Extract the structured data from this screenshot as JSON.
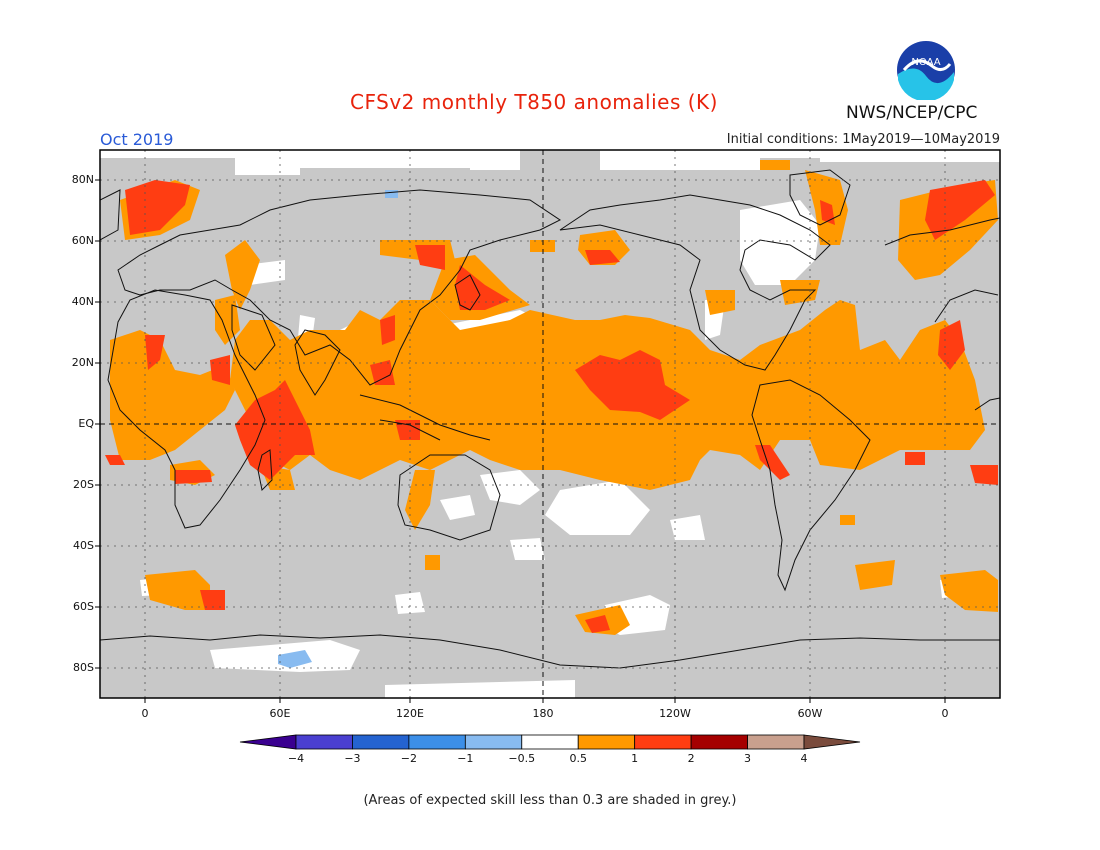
{
  "header": {
    "title": "CFSv2 monthly T850 anomalies (K)",
    "month": "Oct 2019",
    "initial_conditions": "Initial conditions: 1May2019—10May2019",
    "agency": "NWS/NCEP/CPC",
    "logo_text": "NOAA"
  },
  "map": {
    "lat_labels": [
      "80N",
      "60N",
      "40N",
      "20N",
      "EQ",
      "20S",
      "40S",
      "60S",
      "80S"
    ],
    "lat_values": [
      80,
      60,
      40,
      20,
      0,
      -20,
      -40,
      -60,
      -80
    ],
    "lon_labels": [
      "0",
      "60E",
      "120E",
      "180",
      "120W",
      "60W",
      "0"
    ],
    "lon_values": [
      0,
      60,
      120,
      180,
      240,
      300,
      360
    ],
    "lon_range": [
      -20,
      380
    ],
    "lat_range": [
      -90,
      90
    ],
    "colors": {
      "grey_low_skill": "#c8c8c8",
      "near_zero": "#ffffff",
      "warm_0_5_1": "#ff9900",
      "warm_1_2": "#ff3d12",
      "cool_-1_-0_5": "#88bbf0"
    }
  },
  "colorbar": {
    "labels": [
      "−4",
      "−3",
      "−2",
      "−1",
      "−0.5",
      "0.5",
      "1",
      "2",
      "3",
      "4"
    ],
    "colors": [
      "#3a0090",
      "#4a3fd0",
      "#2463d0",
      "#3c8fe8",
      "#88bbf0",
      "#ffffff",
      "#ff9900",
      "#ff3d12",
      "#a50000",
      "#c9a08e",
      "#7a4b3c"
    ]
  },
  "footnote": "(Areas of expected skill less than 0.3 are shaded in grey.)"
}
